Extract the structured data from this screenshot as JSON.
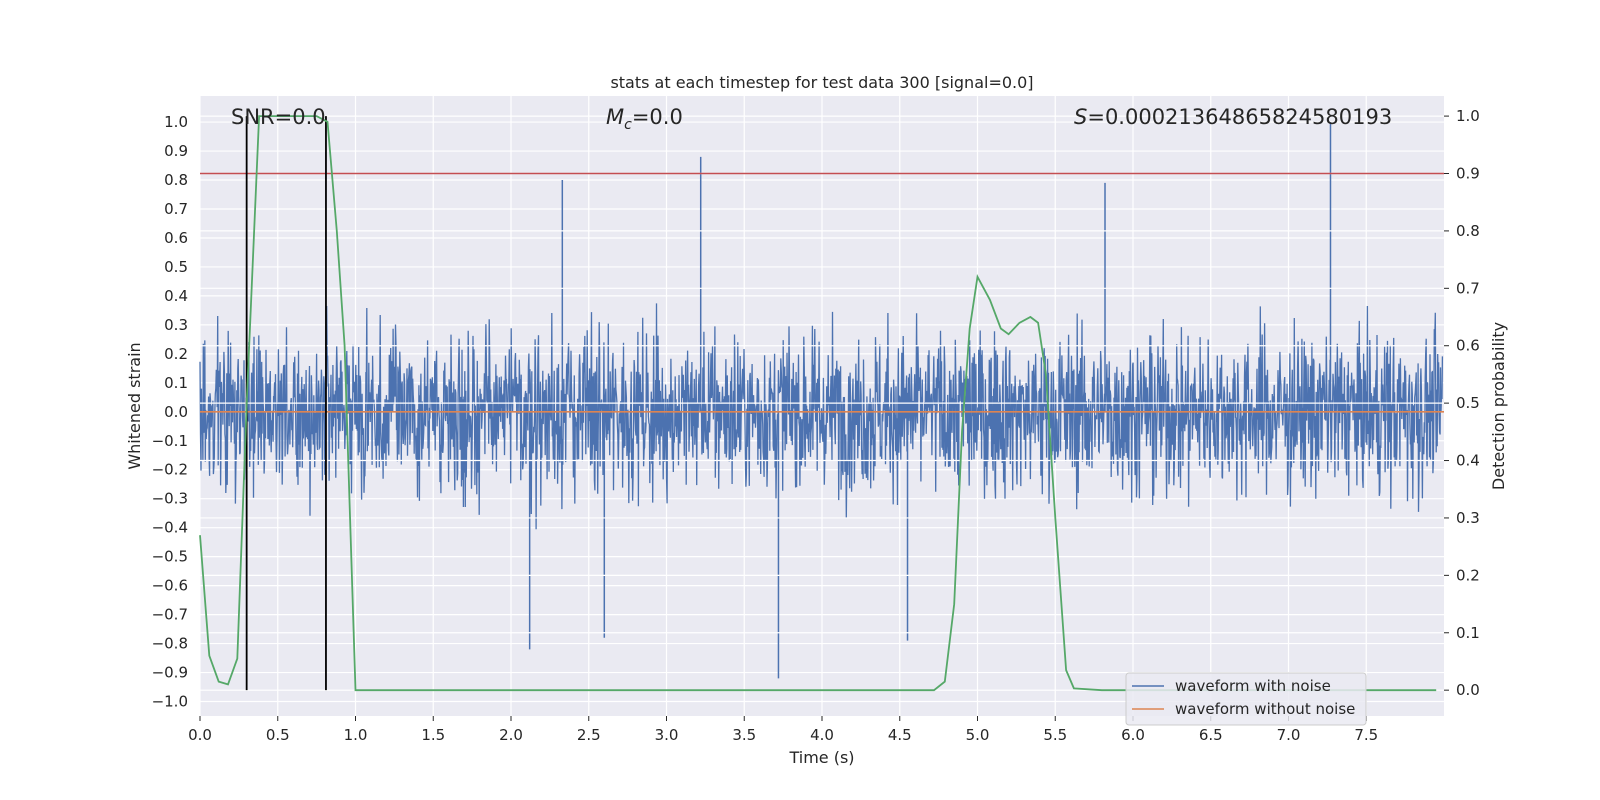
{
  "chart_data": {
    "type": "line",
    "title": "stats at each timestep for test data 300 [signal=0.0]",
    "xlabel": "Time (s)",
    "ylabel": "Whitened strain",
    "y2label": "Detection probability",
    "xlim": [
      0.0,
      8.0
    ],
    "ylim": [
      -1.05,
      1.09
    ],
    "y2lim": [
      -0.045,
      1.035
    ],
    "xticks": [
      0.0,
      0.5,
      1.0,
      1.5,
      2.0,
      2.5,
      3.0,
      3.5,
      4.0,
      4.5,
      5.0,
      5.5,
      6.0,
      6.5,
      7.0,
      7.5
    ],
    "xtick_labels": [
      "0.0",
      "0.5",
      "1.0",
      "1.5",
      "2.0",
      "2.5",
      "3.0",
      "3.5",
      "4.0",
      "4.5",
      "5.0",
      "5.5",
      "6.0",
      "6.5",
      "7.0",
      "7.5"
    ],
    "yticks": [
      -1.0,
      -0.9,
      -0.8,
      -0.7,
      -0.6,
      -0.5,
      -0.4,
      -0.3,
      -0.2,
      -0.1,
      0.0,
      0.1,
      0.2,
      0.3,
      0.4,
      0.5,
      0.6,
      0.7,
      0.8,
      0.9,
      1.0
    ],
    "ytick_labels": [
      "−1.0",
      "−0.9",
      "−0.8",
      "−0.7",
      "−0.6",
      "−0.5",
      "−0.4",
      "−0.3",
      "−0.2",
      "−0.1",
      "0.0",
      "0.1",
      "0.2",
      "0.3",
      "0.4",
      "0.5",
      "0.6",
      "0.7",
      "0.8",
      "0.9",
      "1.0"
    ],
    "y2ticks": [
      0.0,
      0.1,
      0.2,
      0.3,
      0.4,
      0.5,
      0.6,
      0.7,
      0.8,
      0.9,
      1.0
    ],
    "y2tick_labels": [
      "0.0",
      "0.1",
      "0.2",
      "0.3",
      "0.4",
      "0.5",
      "0.6",
      "0.7",
      "0.8",
      "0.9",
      "1.0"
    ],
    "annotations": {
      "snr": "SNR=0.0",
      "mc_symbol": "M",
      "mc_sub": "c",
      "mc_value": "=0.0",
      "s_symbol": "S",
      "s_value": "=0.00021364865824580193"
    },
    "threshold_line": {
      "y2": 0.9,
      "color": "#c44e52"
    },
    "vertical_lines": [
      0.3,
      0.81
    ],
    "series": [
      {
        "name": "waveform with noise",
        "color": "#4c72b0",
        "description": "whitened noisy strain, amplitude roughly -0.8 to 1.0",
        "spikes": [
          {
            "x": 3.22,
            "y": 0.88
          },
          {
            "x": 7.27,
            "y": 1.0
          },
          {
            "x": 2.33,
            "y": 0.8
          },
          {
            "x": 5.82,
            "y": 0.79
          },
          {
            "x": 3.72,
            "y": -0.92
          },
          {
            "x": 2.12,
            "y": -0.82
          },
          {
            "x": 4.55,
            "y": -0.79
          },
          {
            "x": 2.6,
            "y": -0.78
          }
        ]
      },
      {
        "name": "waveform without noise",
        "color": "#dd8452",
        "y": 0.0
      },
      {
        "name": "detection probability",
        "color": "#55a868",
        "axis": "y2",
        "x": [
          0.0,
          0.06,
          0.12,
          0.18,
          0.24,
          0.3,
          0.38,
          0.45,
          0.6,
          0.75,
          0.82,
          0.88,
          0.93,
          1.0,
          1.06,
          1.2,
          2.0,
          3.0,
          4.0,
          4.6,
          4.72,
          4.79,
          4.85,
          4.9,
          4.95,
          5.0,
          5.08,
          5.15,
          5.2,
          5.27,
          5.34,
          5.39,
          5.44,
          5.5,
          5.57,
          5.62,
          5.8,
          6.5,
          7.0,
          7.5,
          7.95
        ],
        "y": [
          0.27,
          0.06,
          0.015,
          0.01,
          0.055,
          0.5,
          1.0,
          1.0,
          1.0,
          1.0,
          0.99,
          0.8,
          0.6,
          0.0,
          0.0,
          0.0,
          0.0,
          0.0,
          0.0,
          0.0,
          0.0,
          0.015,
          0.15,
          0.45,
          0.63,
          0.72,
          0.68,
          0.63,
          0.62,
          0.64,
          0.65,
          0.64,
          0.55,
          0.3,
          0.035,
          0.003,
          0.0,
          0.0,
          0.0,
          0.0,
          0.0
        ]
      }
    ],
    "legend": {
      "placement": "lower-right",
      "entries": [
        {
          "label": "waveform with noise",
          "color": "#4c72b0"
        },
        {
          "label": "waveform without noise",
          "color": "#dd8452"
        }
      ]
    },
    "grid": true
  }
}
